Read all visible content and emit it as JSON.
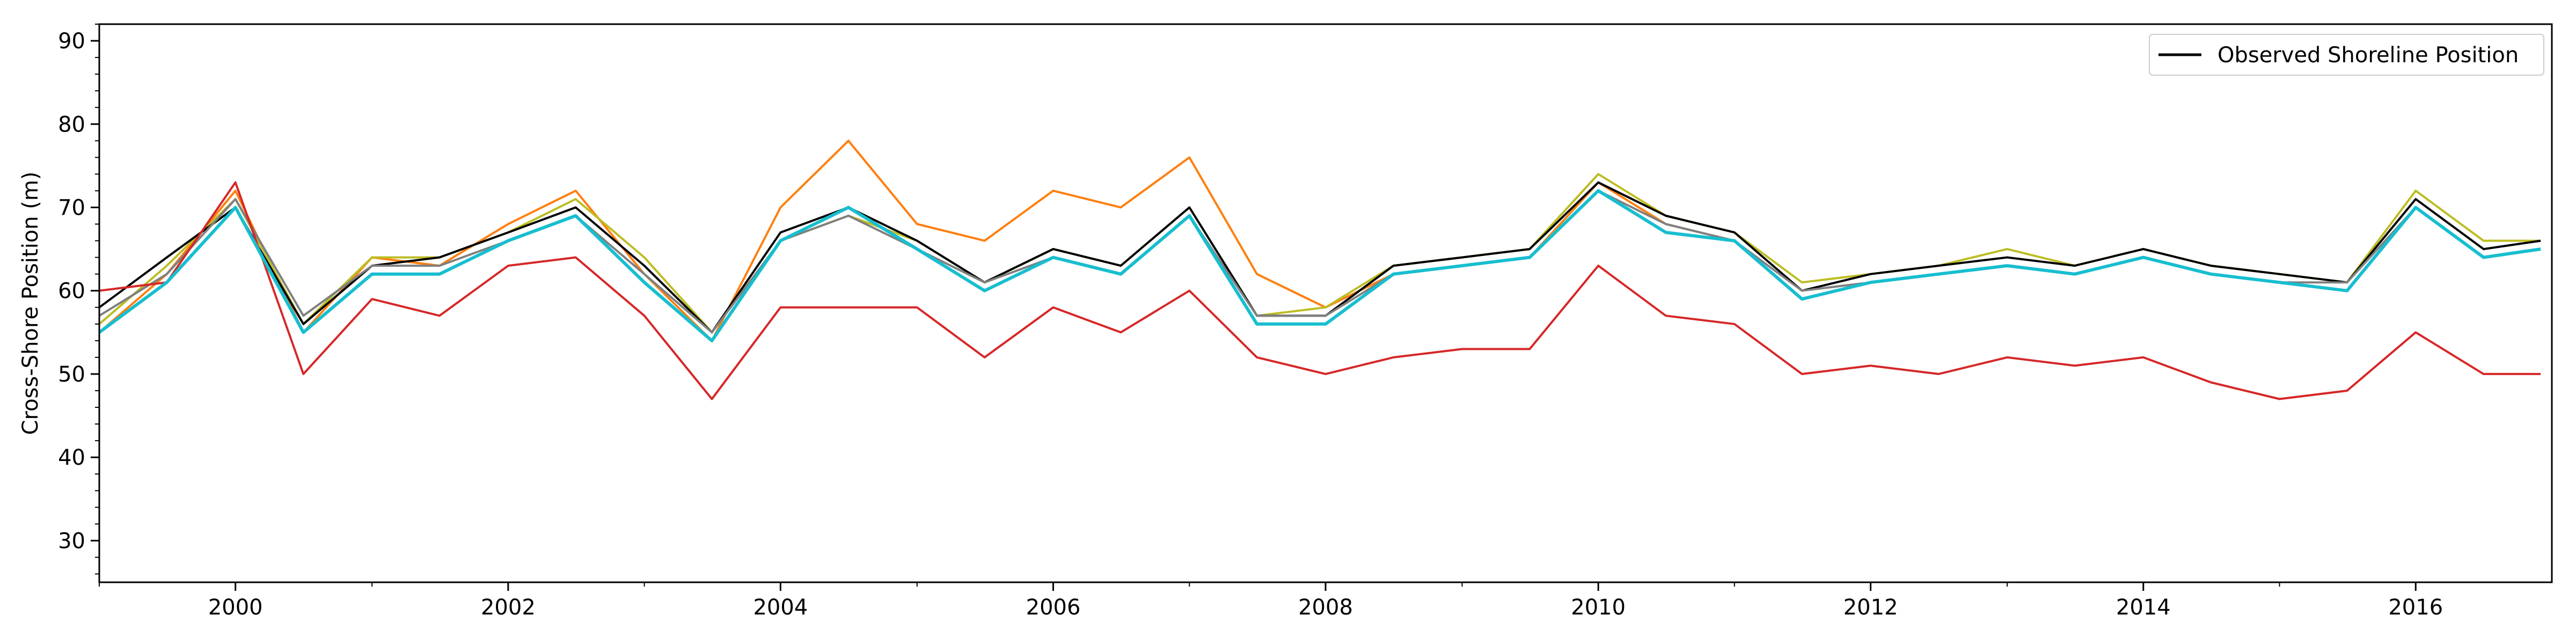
{
  "chart_data": {
    "type": "line",
    "title": "",
    "xlabel": "",
    "ylabel": "Cross-Shore Position (m)",
    "xlim": [
      "1999-01-01",
      "2016-12-31"
    ],
    "ylim": [
      25,
      92
    ],
    "x_ticks": [
      "2000",
      "2002",
      "2004",
      "2006",
      "2008",
      "2010",
      "2012",
      "2014",
      "2016"
    ],
    "y_ticks": [
      30,
      40,
      50,
      60,
      70,
      80,
      90
    ],
    "grid": false,
    "legend": {
      "placement": "top-right",
      "entries": [
        "Observed Shoreline Position"
      ]
    },
    "x": [
      "1999-01",
      "1999-07",
      "2000-01",
      "2000-07",
      "2001-01",
      "2001-07",
      "2002-01",
      "2002-07",
      "2003-01",
      "2003-07",
      "2004-01",
      "2004-07",
      "2005-01",
      "2005-07",
      "2006-01",
      "2006-07",
      "2007-01",
      "2007-07",
      "2008-01",
      "2008-07",
      "2009-01",
      "2009-07",
      "2010-01",
      "2010-07",
      "2011-01",
      "2011-07",
      "2012-01",
      "2012-07",
      "2013-01",
      "2013-07",
      "2014-01",
      "2014-07",
      "2015-01",
      "2015-07",
      "2016-01",
      "2016-07",
      "2016-12"
    ],
    "series": [
      {
        "name": "Observed Shoreline Position",
        "color": "#000000",
        "values": [
          58,
          64,
          70,
          56,
          63,
          64,
          67,
          70,
          63,
          55,
          67,
          70,
          66,
          61,
          65,
          63,
          70,
          57,
          57,
          63,
          64,
          65,
          73,
          69,
          67,
          60,
          62,
          63,
          64,
          63,
          65,
          63,
          62,
          61,
          71,
          65,
          66
        ]
      },
      {
        "color": "#ff7f0e",
        "values": [
          55,
          62,
          72,
          55,
          64,
          63,
          68,
          72,
          62,
          54,
          70,
          78,
          68,
          66,
          72,
          70,
          76,
          62,
          58,
          62,
          63,
          64,
          73,
          68,
          66,
          59,
          61,
          62,
          63,
          62,
          64,
          62,
          61,
          60,
          70,
          64,
          65
        ]
      },
      {
        "color": "#d62728",
        "values": [
          60,
          61,
          73,
          50,
          59,
          57,
          63,
          64,
          57,
          47,
          58,
          58,
          58,
          52,
          58,
          55,
          60,
          52,
          50,
          52,
          53,
          53,
          63,
          57,
          56,
          50,
          51,
          50,
          52,
          51,
          52,
          49,
          47,
          48,
          55,
          50,
          50
        ]
      },
      {
        "color": "#bcbd22",
        "values": [
          56,
          63,
          71,
          56,
          64,
          64,
          67,
          71,
          64,
          55,
          66,
          69,
          66,
          61,
          65,
          63,
          70,
          57,
          58,
          63,
          64,
          65,
          74,
          69,
          67,
          61,
          62,
          63,
          65,
          63,
          65,
          63,
          62,
          61,
          72,
          66,
          66
        ]
      },
      {
        "color": "#7f7f7f",
        "values": [
          57,
          62,
          71,
          57,
          63,
          63,
          66,
          69,
          62,
          55,
          66,
          69,
          65,
          61,
          64,
          62,
          69,
          57,
          57,
          62,
          63,
          64,
          72,
          68,
          66,
          60,
          61,
          62,
          63,
          62,
          64,
          62,
          61,
          61,
          70,
          64,
          65
        ]
      },
      {
        "color": "#17becf",
        "values": [
          55,
          61,
          70,
          55,
          62,
          62,
          66,
          69,
          61,
          54,
          66,
          70,
          65,
          60,
          64,
          62,
          69,
          56,
          56,
          62,
          63,
          64,
          72,
          67,
          66,
          59,
          61,
          62,
          63,
          62,
          64,
          62,
          61,
          60,
          70,
          64,
          65
        ]
      }
    ]
  }
}
